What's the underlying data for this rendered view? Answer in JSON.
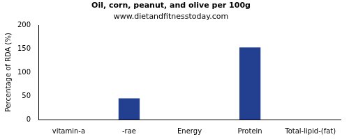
{
  "chart_data": {
    "type": "bar",
    "title": "Oil, corn, peanut, and olive per 100g",
    "subtitle": "www.dietandfitnesstoday.com",
    "y_label": "Percentage of RDA (%)",
    "categories": [
      "vitamin-a",
      "-rae",
      "Energy",
      "Protein",
      "Total-lipid-(fat)"
    ],
    "values": [
      0,
      45,
      0,
      153,
      0
    ],
    "color": "#233f8f",
    "ylim": [
      0,
      200
    ],
    "yticks": [
      0,
      50,
      100,
      150,
      200
    ],
    "grid": false
  }
}
